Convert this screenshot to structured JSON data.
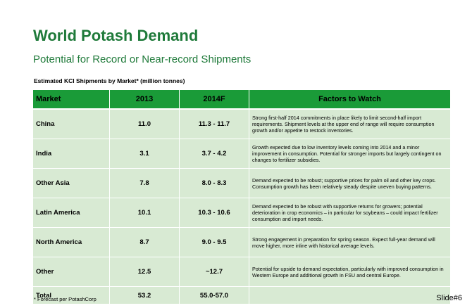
{
  "title": "World Potash Demand",
  "subtitle": "Potential for Record or Near-record Shipments",
  "caption": "Estimated KCI Shipments by Market* (million tonnes)",
  "table": {
    "headers": [
      "Market",
      "2013",
      "2014F",
      "Factors to Watch"
    ],
    "rows": [
      {
        "market": "China",
        "y2013": "11.0",
        "y2014": "11.3 - 11.7",
        "factors": "Strong first-half 2014 commitments in place likely to limit second-half import requirements. Shipment levels at the upper end of range will require consumption growth  and/or appetite to restock inventories."
      },
      {
        "market": "India",
        "y2013": "3.1",
        "y2014": "3.7 - 4.2",
        "factors": "Growth expected due to low inventory levels coming into 2014 and a minor improvement in consumption. Potential for stronger imports but largely contingent on changes to fertilizer subsidies."
      },
      {
        "market": "Other Asia",
        "y2013": "7.8",
        "y2014": "8.0 - 8.3",
        "factors": "Demand expected to be robust; supportive prices for palm oil and other key crops. Consumption growth has been relatively steady despite uneven buying patterns."
      },
      {
        "market": "Latin America",
        "y2013": "10.1",
        "y2014": "10.3 - 10.6",
        "factors": "Demand expected to be robust with supportive returns for growers; potential deterioration in crop economics – in particular for soybeans – could impact fertilizer consumption and import needs."
      },
      {
        "market": "North America",
        "y2013": "8.7",
        "y2014": "9.0 - 9.5",
        "factors": "Strong engagement in preparation for spring season. Expect full-year demand will move higher, more inline with historical average levels."
      },
      {
        "market": "Other",
        "y2013": "12.5",
        "y2014": "~12.7",
        "factors": "Potential for upside to demand expectation, particularly with improved consumption in Western Europe and additional growth in FSU and central Europe."
      }
    ],
    "total": {
      "market": "Total",
      "y2013": "53.2",
      "y2014": "55.0-57.0",
      "factors": ""
    }
  },
  "footnote": "* Forecast per PotashCorp",
  "slide_label": "Slide#6",
  "colors": {
    "title": "#1f7a3a",
    "header_bg": "#1a9b38",
    "cell_bg": "#d8ead3"
  }
}
